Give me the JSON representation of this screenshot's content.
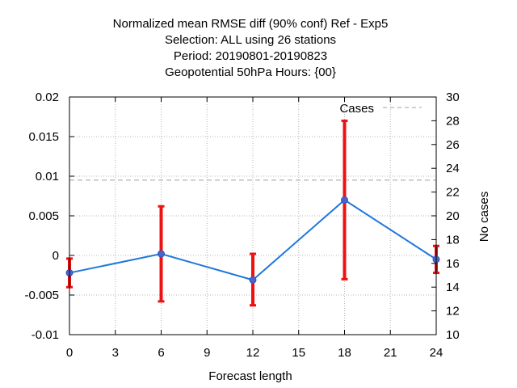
{
  "chart_data": {
    "type": "line",
    "title_lines": [
      "Normalized mean RMSE diff (90% conf) Ref - Exp5",
      "Selection: ALL using    26 stations",
      "Period: 20190801-20190823",
      "Geopotential 50hPa   Hours: {00}"
    ],
    "xlabel": "Forecast length",
    "ylabel": "",
    "y2label": "No cases",
    "xlim": [
      0,
      24
    ],
    "ylim": [
      -0.01,
      0.02
    ],
    "y2lim": [
      10,
      30
    ],
    "xticks": [
      0,
      3,
      6,
      9,
      12,
      15,
      18,
      21,
      24
    ],
    "yticks": [
      -0.01,
      -0.005,
      0,
      0.005,
      0.01,
      0.015,
      0.02
    ],
    "ytick_labels": [
      "-0.01",
      "-0.005",
      "0",
      "0.005",
      "0.01",
      "0.015",
      "0.02"
    ],
    "y2ticks": [
      10,
      12,
      14,
      16,
      18,
      20,
      22,
      24,
      26,
      28,
      30
    ],
    "grid": true,
    "legend_position": "top-right",
    "series": [
      {
        "name": "",
        "axis": "left",
        "color": "#1e78dc",
        "marker_color": "#4a64c8",
        "x": [
          0,
          6,
          12,
          18,
          24
        ],
        "y": [
          -0.0022,
          0.0002,
          -0.0031,
          0.007,
          -0.0005
        ],
        "error_low": [
          -0.004,
          -0.0058,
          -0.0063,
          -0.003,
          -0.0022
        ],
        "error_high": [
          -0.0004,
          0.0062,
          0.0002,
          0.017,
          0.0012
        ],
        "error_color": "#ee1111"
      },
      {
        "name": "Cases",
        "axis": "right",
        "style": "dashed",
        "color": "#a0a0a0",
        "x": [
          0,
          24
        ],
        "y": [
          23.0,
          23.0
        ]
      }
    ]
  }
}
